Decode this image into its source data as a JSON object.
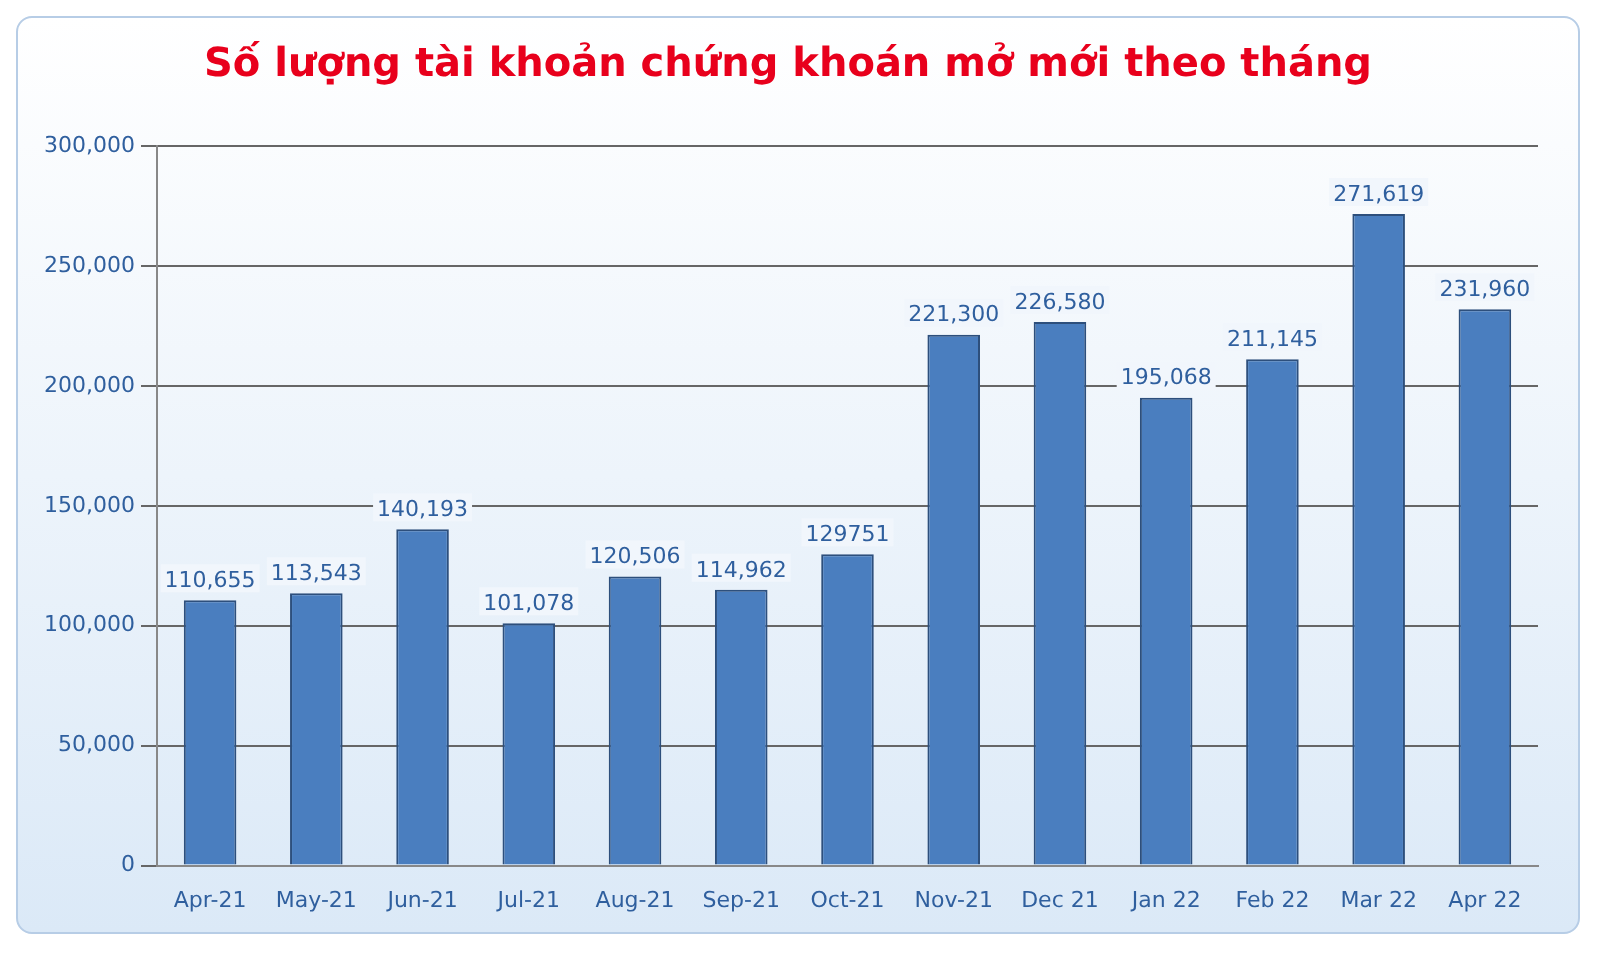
{
  "chart_data": {
    "type": "bar",
    "title": "Số lượng tài khoản chứng khoán mở mới theo tháng",
    "categories": [
      "Apr-21",
      "May-21",
      "Jun-21",
      "Jul-21",
      "Aug-21",
      "Sep-21",
      "Oct-21",
      "Nov-21",
      "Dec 21",
      "Jan 22",
      "Feb 22",
      "Mar 22",
      "Apr 22"
    ],
    "values": [
      110655,
      113543,
      140193,
      101078,
      120506,
      114962,
      129751,
      221300,
      226580,
      195068,
      211145,
      271619,
      231960
    ],
    "value_labels": [
      "110,655",
      "113,543",
      "140,193",
      "101,078",
      "120,506",
      "114,962",
      "129751",
      "221,300",
      "226,580",
      "195,068",
      "211,145",
      "271,619",
      "231,960"
    ],
    "color": "#4a7ebf",
    "ylim": [
      0,
      300000
    ],
    "yticks": [
      0,
      {
        "value": 50000,
        "label": "50,000"
      },
      {
        "value": 100000,
        "label": "100,000"
      },
      {
        "value": 150000,
        "label": "150,000"
      },
      {
        "value": 200000,
        "label": "200,000"
      },
      {
        "value": 250000,
        "label": "250,000"
      },
      {
        "value": 300000,
        "label": "300,000"
      }
    ],
    "grid": "y",
    "legend": false
  }
}
